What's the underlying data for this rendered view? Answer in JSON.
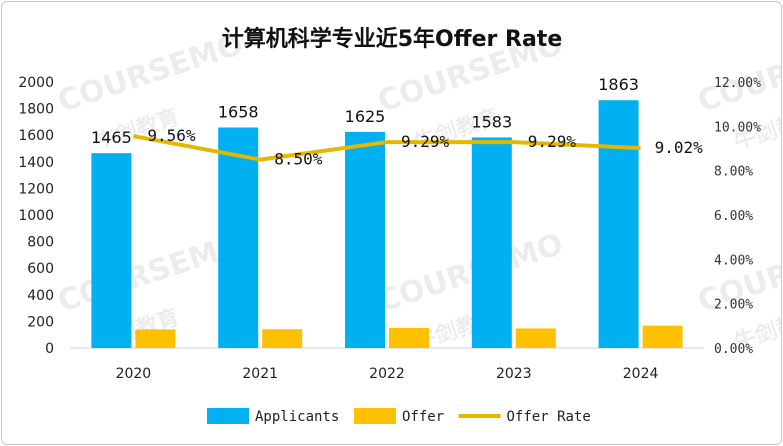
{
  "chart_data": {
    "type": "bar",
    "title": "计算机科学专业近5年Offer Rate",
    "categories": [
      "2020",
      "2021",
      "2022",
      "2023",
      "2024"
    ],
    "series": [
      {
        "name": "Applicants",
        "type": "bar",
        "axis": "left",
        "color": "#00B0F0",
        "values": [
          1465,
          1658,
          1625,
          1583,
          1863
        ]
      },
      {
        "name": "Offer",
        "type": "bar",
        "axis": "left",
        "color": "#FFC000",
        "values": [
          140,
          141,
          151,
          147,
          168
        ]
      },
      {
        "name": "Offer Rate",
        "type": "line",
        "axis": "right",
        "color": "#E5B800",
        "values": [
          9.56,
          8.5,
          9.29,
          9.29,
          9.02
        ]
      }
    ],
    "applicant_labels": [
      "1465",
      "1658",
      "1625",
      "1583",
      "1863"
    ],
    "rate_labels": [
      "9.56%",
      "8.50%",
      "9.29%",
      "9.29%",
      "9.02%"
    ],
    "y_left": {
      "min": 0,
      "max": 2000,
      "ticks": [
        "0",
        "200",
        "400",
        "600",
        "800",
        "1000",
        "1200",
        "1400",
        "1600",
        "1800",
        "2000"
      ]
    },
    "y_right": {
      "min": 0,
      "max": 12,
      "ticks": [
        "0.00%",
        "2.00%",
        "4.00%",
        "6.00%",
        "8.00%",
        "10.00%",
        "12.00%"
      ]
    },
    "legend_position": "bottom",
    "grid": false
  },
  "watermark": {
    "latin": "COURSEMO",
    "cjk": "牛剑教育"
  }
}
